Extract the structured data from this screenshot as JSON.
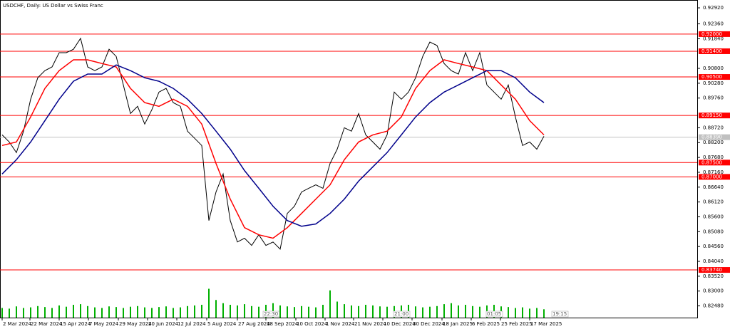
{
  "chart_data": {
    "type": "line",
    "title": "USDCHF, Daily:  US Dollar vs Swiss Franc",
    "xlim": [
      -0.3,
      97.5
    ],
    "ylim": [
      0.8207,
      0.9317
    ],
    "xticks": [
      {
        "value": 0,
        "label": "2 Mar 2024"
      },
      {
        "value": 3.9,
        "label": "22 Mar 2024"
      },
      {
        "value": 8,
        "label": "15 Apr 2024"
      },
      {
        "value": 12.1,
        "label": "7 May 2024"
      },
      {
        "value": 16.3,
        "label": "29 May 2024"
      },
      {
        "value": 20.4,
        "label": "20 Jun 2024"
      },
      {
        "value": 24.5,
        "label": "12 Jul 2024"
      },
      {
        "value": 28.7,
        "label": "5 Aug 2024"
      },
      {
        "value": 33,
        "label": "27 Aug 2024"
      },
      {
        "value": 37,
        "label": "18 Sep 2024"
      },
      {
        "value": 41.2,
        "label": "10 Oct 2024"
      },
      {
        "value": 45.3,
        "label": "1 Nov 2024"
      },
      {
        "value": 49.3,
        "label": "21 Nov 2024"
      },
      {
        "value": 53.4,
        "label": "10 Dec 2024"
      },
      {
        "value": 57.5,
        "label": "30 Dec 2024"
      },
      {
        "value": 61.7,
        "label": "18 Jan 2025"
      },
      {
        "value": 65.8,
        "label": "6 Feb 2025"
      },
      {
        "value": 69.9,
        "label": "25 Feb 2025"
      },
      {
        "value": 74,
        "label": "17 Mar 2025"
      }
    ],
    "yticks": [
      {
        "value": 0.9292,
        "label": "0.92920"
      },
      {
        "value": 0.9236,
        "label": "0.92360"
      },
      {
        "value": 0.9184,
        "label": "0.91840"
      },
      {
        "value": 0.908,
        "label": "0.90800"
      },
      {
        "value": 0.9028,
        "label": "0.90280"
      },
      {
        "value": 0.8976,
        "label": "0.89760"
      },
      {
        "value": 0.8872,
        "label": "0.88720"
      },
      {
        "value": 0.882,
        "label": "0.88200"
      },
      {
        "value": 0.8768,
        "label": "0.87680"
      },
      {
        "value": 0.8716,
        "label": "0.87160"
      },
      {
        "value": 0.8664,
        "label": "0.86640"
      },
      {
        "value": 0.8612,
        "label": "0.86120"
      },
      {
        "value": 0.856,
        "label": "0.85600"
      },
      {
        "value": 0.8508,
        "label": "0.85080"
      },
      {
        "value": 0.8456,
        "label": "0.84560"
      },
      {
        "value": 0.8404,
        "label": "0.84040"
      },
      {
        "value": 0.8352,
        "label": "0.83520"
      },
      {
        "value": 0.83,
        "label": "0.83000"
      },
      {
        "value": 0.8248,
        "label": "0.82480"
      }
    ],
    "series": [
      {
        "color": "#000000",
        "x": [
          0,
          1,
          2,
          3,
          4,
          5,
          6,
          7,
          8,
          9,
          10,
          11,
          12,
          13,
          14,
          15,
          16,
          17,
          18,
          19,
          20,
          21,
          22,
          23,
          24,
          25,
          26,
          27,
          28,
          29,
          30,
          31,
          32,
          33,
          34,
          35,
          36,
          37,
          38,
          39,
          40,
          41,
          42,
          43,
          44,
          45,
          46,
          47,
          48,
          49,
          50,
          51,
          52,
          53,
          54,
          55,
          56,
          57,
          58,
          59,
          60,
          61,
          62,
          63,
          64,
          65,
          66,
          67,
          68,
          69,
          70,
          71,
          72,
          73,
          74,
          75,
          76
        ],
        "values": [
          0.8847,
          0.8822,
          0.8785,
          0.886,
          0.8972,
          0.9047,
          0.9072,
          0.9085,
          0.9135,
          0.9135,
          0.9147,
          0.9185,
          0.9085,
          0.9072,
          0.9085,
          0.9147,
          0.9122,
          0.9022,
          0.8922,
          0.8947,
          0.8885,
          0.8935,
          0.8997,
          0.901,
          0.896,
          0.8947,
          0.886,
          0.8835,
          0.881,
          0.8547,
          0.8647,
          0.871,
          0.8547,
          0.8472,
          0.8485,
          0.846,
          0.8497,
          0.846,
          0.8472,
          0.8447,
          0.8572,
          0.8597,
          0.8647,
          0.866,
          0.8672,
          0.866,
          0.8747,
          0.8797,
          0.8872,
          0.886,
          0.8922,
          0.8847,
          0.8822,
          0.8797,
          0.8847,
          0.8997,
          0.8972,
          0.8997,
          0.9047,
          0.9122,
          0.9172,
          0.916,
          0.9097,
          0.9072,
          0.906,
          0.9135,
          0.9072,
          0.9135,
          0.9022,
          0.8997,
          0.8972,
          0.9022,
          0.891,
          0.881,
          0.8822,
          0.8797,
          0.8842
        ]
      },
      {
        "color": "#ff0000",
        "x": [
          0,
          2,
          4,
          6,
          8,
          10,
          12,
          14,
          16,
          18,
          20,
          22,
          24,
          26,
          28,
          30,
          32,
          34,
          36,
          38,
          40,
          42,
          44,
          46,
          48,
          50,
          52,
          54,
          56,
          58,
          60,
          62,
          64,
          66,
          68,
          70,
          72,
          74,
          76
        ],
        "values": [
          0.881,
          0.8822,
          0.891,
          0.901,
          0.9072,
          0.911,
          0.911,
          0.9097,
          0.9085,
          0.901,
          0.896,
          0.8947,
          0.8972,
          0.8947,
          0.8885,
          0.8747,
          0.8622,
          0.8522,
          0.8497,
          0.8485,
          0.8522,
          0.8572,
          0.8622,
          0.8672,
          0.876,
          0.8822,
          0.8847,
          0.886,
          0.891,
          0.901,
          0.9072,
          0.911,
          0.9097,
          0.9085,
          0.9072,
          0.9022,
          0.8972,
          0.8897,
          0.8847
        ]
      },
      {
        "color": "#00008b",
        "x": [
          0,
          2,
          4,
          6,
          8,
          10,
          12,
          14,
          16,
          18,
          20,
          22,
          24,
          26,
          28,
          30,
          32,
          34,
          36,
          38,
          40,
          42,
          44,
          46,
          48,
          50,
          52,
          54,
          56,
          58,
          60,
          62,
          64,
          66,
          68,
          70,
          72,
          74,
          76
        ],
        "values": [
          0.871,
          0.876,
          0.8822,
          0.8897,
          0.8972,
          0.9035,
          0.906,
          0.906,
          0.9092,
          0.9072,
          0.9047,
          0.9035,
          0.901,
          0.8972,
          0.8922,
          0.886,
          0.8797,
          0.8722,
          0.866,
          0.8597,
          0.8547,
          0.8527,
          0.8535,
          0.8572,
          0.8622,
          0.8685,
          0.8735,
          0.8785,
          0.8847,
          0.891,
          0.896,
          0.8997,
          0.9022,
          0.9047,
          0.9072,
          0.9072,
          0.9047,
          0.8997,
          0.896
        ]
      }
    ],
    "volume": {
      "color": "#00b000",
      "ylim": [
        0,
        100
      ],
      "values": [
        30,
        28,
        35,
        30,
        32,
        36,
        33,
        30,
        38,
        34,
        40,
        42,
        36,
        32,
        30,
        35,
        33,
        30,
        34,
        36,
        32,
        30,
        33,
        35,
        30,
        32,
        36,
        38,
        40,
        90,
        55,
        45,
        40,
        38,
        42,
        36,
        34,
        40,
        45,
        38,
        35,
        33,
        36,
        34,
        32,
        40,
        85,
        50,
        42,
        38,
        36,
        40,
        38,
        35,
        34,
        36,
        38,
        40,
        35,
        32,
        34,
        36,
        42,
        45,
        38,
        40,
        36,
        34,
        38,
        40,
        35,
        33,
        30,
        32,
        28,
        30,
        26
      ]
    },
    "levels": [
      {
        "value": 0.92,
        "label": "0.92000",
        "color": "#ff0000"
      },
      {
        "value": 0.914,
        "label": "0.91400",
        "color": "#ff0000"
      },
      {
        "value": 0.905,
        "label": "0.90500",
        "color": "#ff0000"
      },
      {
        "value": 0.8915,
        "label": "0.89150",
        "color": "#ff0000"
      },
      {
        "value": 0.875,
        "label": "0.87500",
        "color": "#ff0000"
      },
      {
        "value": 0.87,
        "label": "0.87000",
        "color": "#ff0000"
      },
      {
        "value": 0.8374,
        "label": "0.83740",
        "color": "#ff0000"
      },
      {
        "value": 0.8839,
        "label": "0.88390",
        "color": "#c0c0c0"
      }
    ],
    "annotations": [
      {
        "x": 36.7,
        "label": "22:30"
      },
      {
        "x": 55,
        "label": "21:00"
      },
      {
        "x": 68,
        "label": "01:05"
      },
      {
        "x": 77.2,
        "label": "19:15"
      }
    ]
  }
}
